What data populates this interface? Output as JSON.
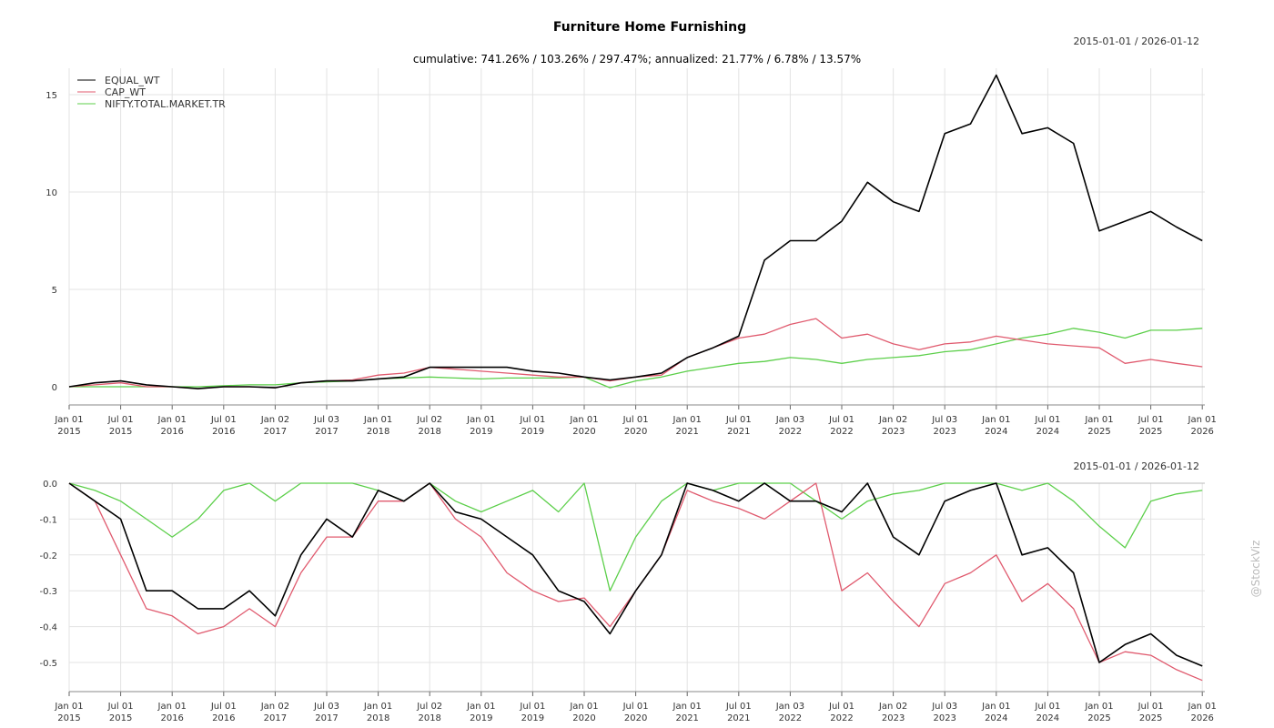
{
  "chart_data": [
    {
      "type": "line",
      "title": "Furniture Home Furnishing",
      "subtitle": "cumulative: 741.26% / 103.26% / 297.47%; annualized: 21.77% / 6.78% / 13.57%",
      "date_range": "2015-01-01 / 2026-01-12",
      "ylim": [
        -0.9,
        16.5
      ],
      "yticks": [
        "0",
        "5",
        "10",
        "15"
      ],
      "ytick_values": [
        0,
        5,
        10,
        15
      ],
      "xticks": [
        [
          "Jan 01",
          "2015"
        ],
        [
          "Jul 01",
          "2015"
        ],
        [
          "Jan 01",
          "2016"
        ],
        [
          "Jul 01",
          "2016"
        ],
        [
          "Jan 02",
          "2017"
        ],
        [
          "Jul 03",
          "2017"
        ],
        [
          "Jan 01",
          "2018"
        ],
        [
          "Jul 02",
          "2018"
        ],
        [
          "Jan 01",
          "2019"
        ],
        [
          "Jul 01",
          "2019"
        ],
        [
          "Jan 01",
          "2020"
        ],
        [
          "Jul 01",
          "2020"
        ],
        [
          "Jan 01",
          "2021"
        ],
        [
          "Jul 01",
          "2021"
        ],
        [
          "Jan 03",
          "2022"
        ],
        [
          "Jul 01",
          "2022"
        ],
        [
          "Jan 02",
          "2023"
        ],
        [
          "Jul 03",
          "2023"
        ],
        [
          "Jan 01",
          "2024"
        ],
        [
          "Jul 01",
          "2024"
        ],
        [
          "Jan 01",
          "2025"
        ],
        [
          "Jul 01",
          "2025"
        ],
        [
          "Jan 01",
          "2026"
        ]
      ],
      "legend_position": "top-left",
      "grid": true,
      "x_start_year": 2015,
      "x_step_years": 0.25,
      "series": [
        {
          "name": "EQUAL_WT",
          "color": "#000000",
          "values": [
            0,
            0.2,
            0.3,
            0.1,
            0,
            -0.1,
            0,
            0,
            -0.05,
            0.2,
            0.3,
            0.3,
            0.4,
            0.5,
            1.0,
            1.0,
            1.0,
            1.0,
            0.8,
            0.7,
            0.5,
            0.35,
            0.5,
            0.7,
            1.5,
            2.0,
            2.6,
            6.5,
            7.5,
            7.5,
            8.5,
            10.5,
            9.5,
            9.0,
            13.0,
            13.5,
            16.0,
            13.0,
            13.3,
            12.5,
            8.0,
            8.5,
            9.0,
            8.2,
            7.5
          ]
        },
        {
          "name": "CAP_WT",
          "color": "#e05a6e",
          "values": [
            0,
            0.1,
            0.2,
            0,
            0,
            -0.1,
            0,
            0,
            -0.05,
            0.2,
            0.3,
            0.35,
            0.6,
            0.7,
            1.0,
            0.9,
            0.8,
            0.7,
            0.6,
            0.5,
            0.5,
            0.3,
            0.5,
            0.6,
            1.5,
            2.0,
            2.5,
            2.7,
            3.2,
            3.5,
            2.5,
            2.7,
            2.2,
            1.9,
            2.2,
            2.3,
            2.6,
            2.4,
            2.2,
            2.1,
            2.0,
            1.2,
            1.4,
            1.2,
            1.03
          ]
        },
        {
          "name": "NIFTY.TOTAL.MARKET.TR",
          "color": "#5ccf4a",
          "values": [
            0,
            0,
            0,
            0,
            0,
            0,
            0.05,
            0.1,
            0.1,
            0.2,
            0.25,
            0.3,
            0.4,
            0.45,
            0.5,
            0.45,
            0.4,
            0.45,
            0.45,
            0.45,
            0.5,
            -0.05,
            0.3,
            0.5,
            0.8,
            1.0,
            1.2,
            1.3,
            1.5,
            1.4,
            1.2,
            1.4,
            1.5,
            1.6,
            1.8,
            1.9,
            2.2,
            2.5,
            2.7,
            3.0,
            2.8,
            2.5,
            2.9,
            2.9,
            3.0
          ]
        }
      ]
    },
    {
      "type": "line",
      "title": "Drawdown",
      "date_range": "2015-01-01 / 2026-01-12",
      "ylim": [
        -0.58,
        0
      ],
      "yticks": [
        "0.0",
        "-0.1",
        "-0.2",
        "-0.3",
        "-0.4",
        "-0.5"
      ],
      "ytick_values": [
        0,
        -0.1,
        -0.2,
        -0.3,
        -0.4,
        -0.5
      ],
      "grid": true,
      "x_start_year": 2015,
      "x_step_years": 0.25,
      "series": [
        {
          "name": "EQUAL_WT",
          "color": "#000000",
          "values": [
            0,
            -0.05,
            -0.1,
            -0.3,
            -0.3,
            -0.35,
            -0.35,
            -0.3,
            -0.37,
            -0.2,
            -0.1,
            -0.15,
            -0.02,
            -0.05,
            0,
            -0.08,
            -0.1,
            -0.15,
            -0.2,
            -0.3,
            -0.33,
            -0.42,
            -0.3,
            -0.2,
            0,
            -0.02,
            -0.05,
            0,
            -0.05,
            -0.05,
            -0.08,
            0,
            -0.15,
            -0.2,
            -0.05,
            -0.02,
            0,
            -0.2,
            -0.18,
            -0.25,
            -0.5,
            -0.45,
            -0.42,
            -0.48,
            -0.51
          ]
        },
        {
          "name": "CAP_WT",
          "color": "#e05a6e",
          "values": [
            0,
            -0.05,
            -0.2,
            -0.35,
            -0.37,
            -0.42,
            -0.4,
            -0.35,
            -0.4,
            -0.25,
            -0.15,
            -0.15,
            -0.05,
            -0.05,
            0,
            -0.1,
            -0.15,
            -0.25,
            -0.3,
            -0.33,
            -0.32,
            -0.4,
            -0.3,
            -0.2,
            -0.02,
            -0.05,
            -0.07,
            -0.1,
            -0.05,
            0,
            -0.3,
            -0.25,
            -0.33,
            -0.4,
            -0.28,
            -0.25,
            -0.2,
            -0.33,
            -0.28,
            -0.35,
            -0.5,
            -0.47,
            -0.48,
            -0.52,
            -0.55
          ]
        },
        {
          "name": "NIFTY.TOTAL.MARKET.TR",
          "color": "#5ccf4a",
          "values": [
            0,
            -0.02,
            -0.05,
            -0.1,
            -0.15,
            -0.1,
            -0.02,
            0,
            -0.05,
            0,
            0,
            0,
            -0.02,
            -0.05,
            0,
            -0.05,
            -0.08,
            -0.05,
            -0.02,
            -0.08,
            0,
            -0.3,
            -0.15,
            -0.05,
            0,
            -0.02,
            0,
            0,
            0,
            -0.05,
            -0.1,
            -0.05,
            -0.03,
            -0.02,
            0,
            0,
            0,
            -0.02,
            0,
            -0.05,
            -0.12,
            -0.18,
            -0.05,
            -0.03,
            -0.02
          ]
        }
      ]
    }
  ],
  "watermark": "@StockViz"
}
